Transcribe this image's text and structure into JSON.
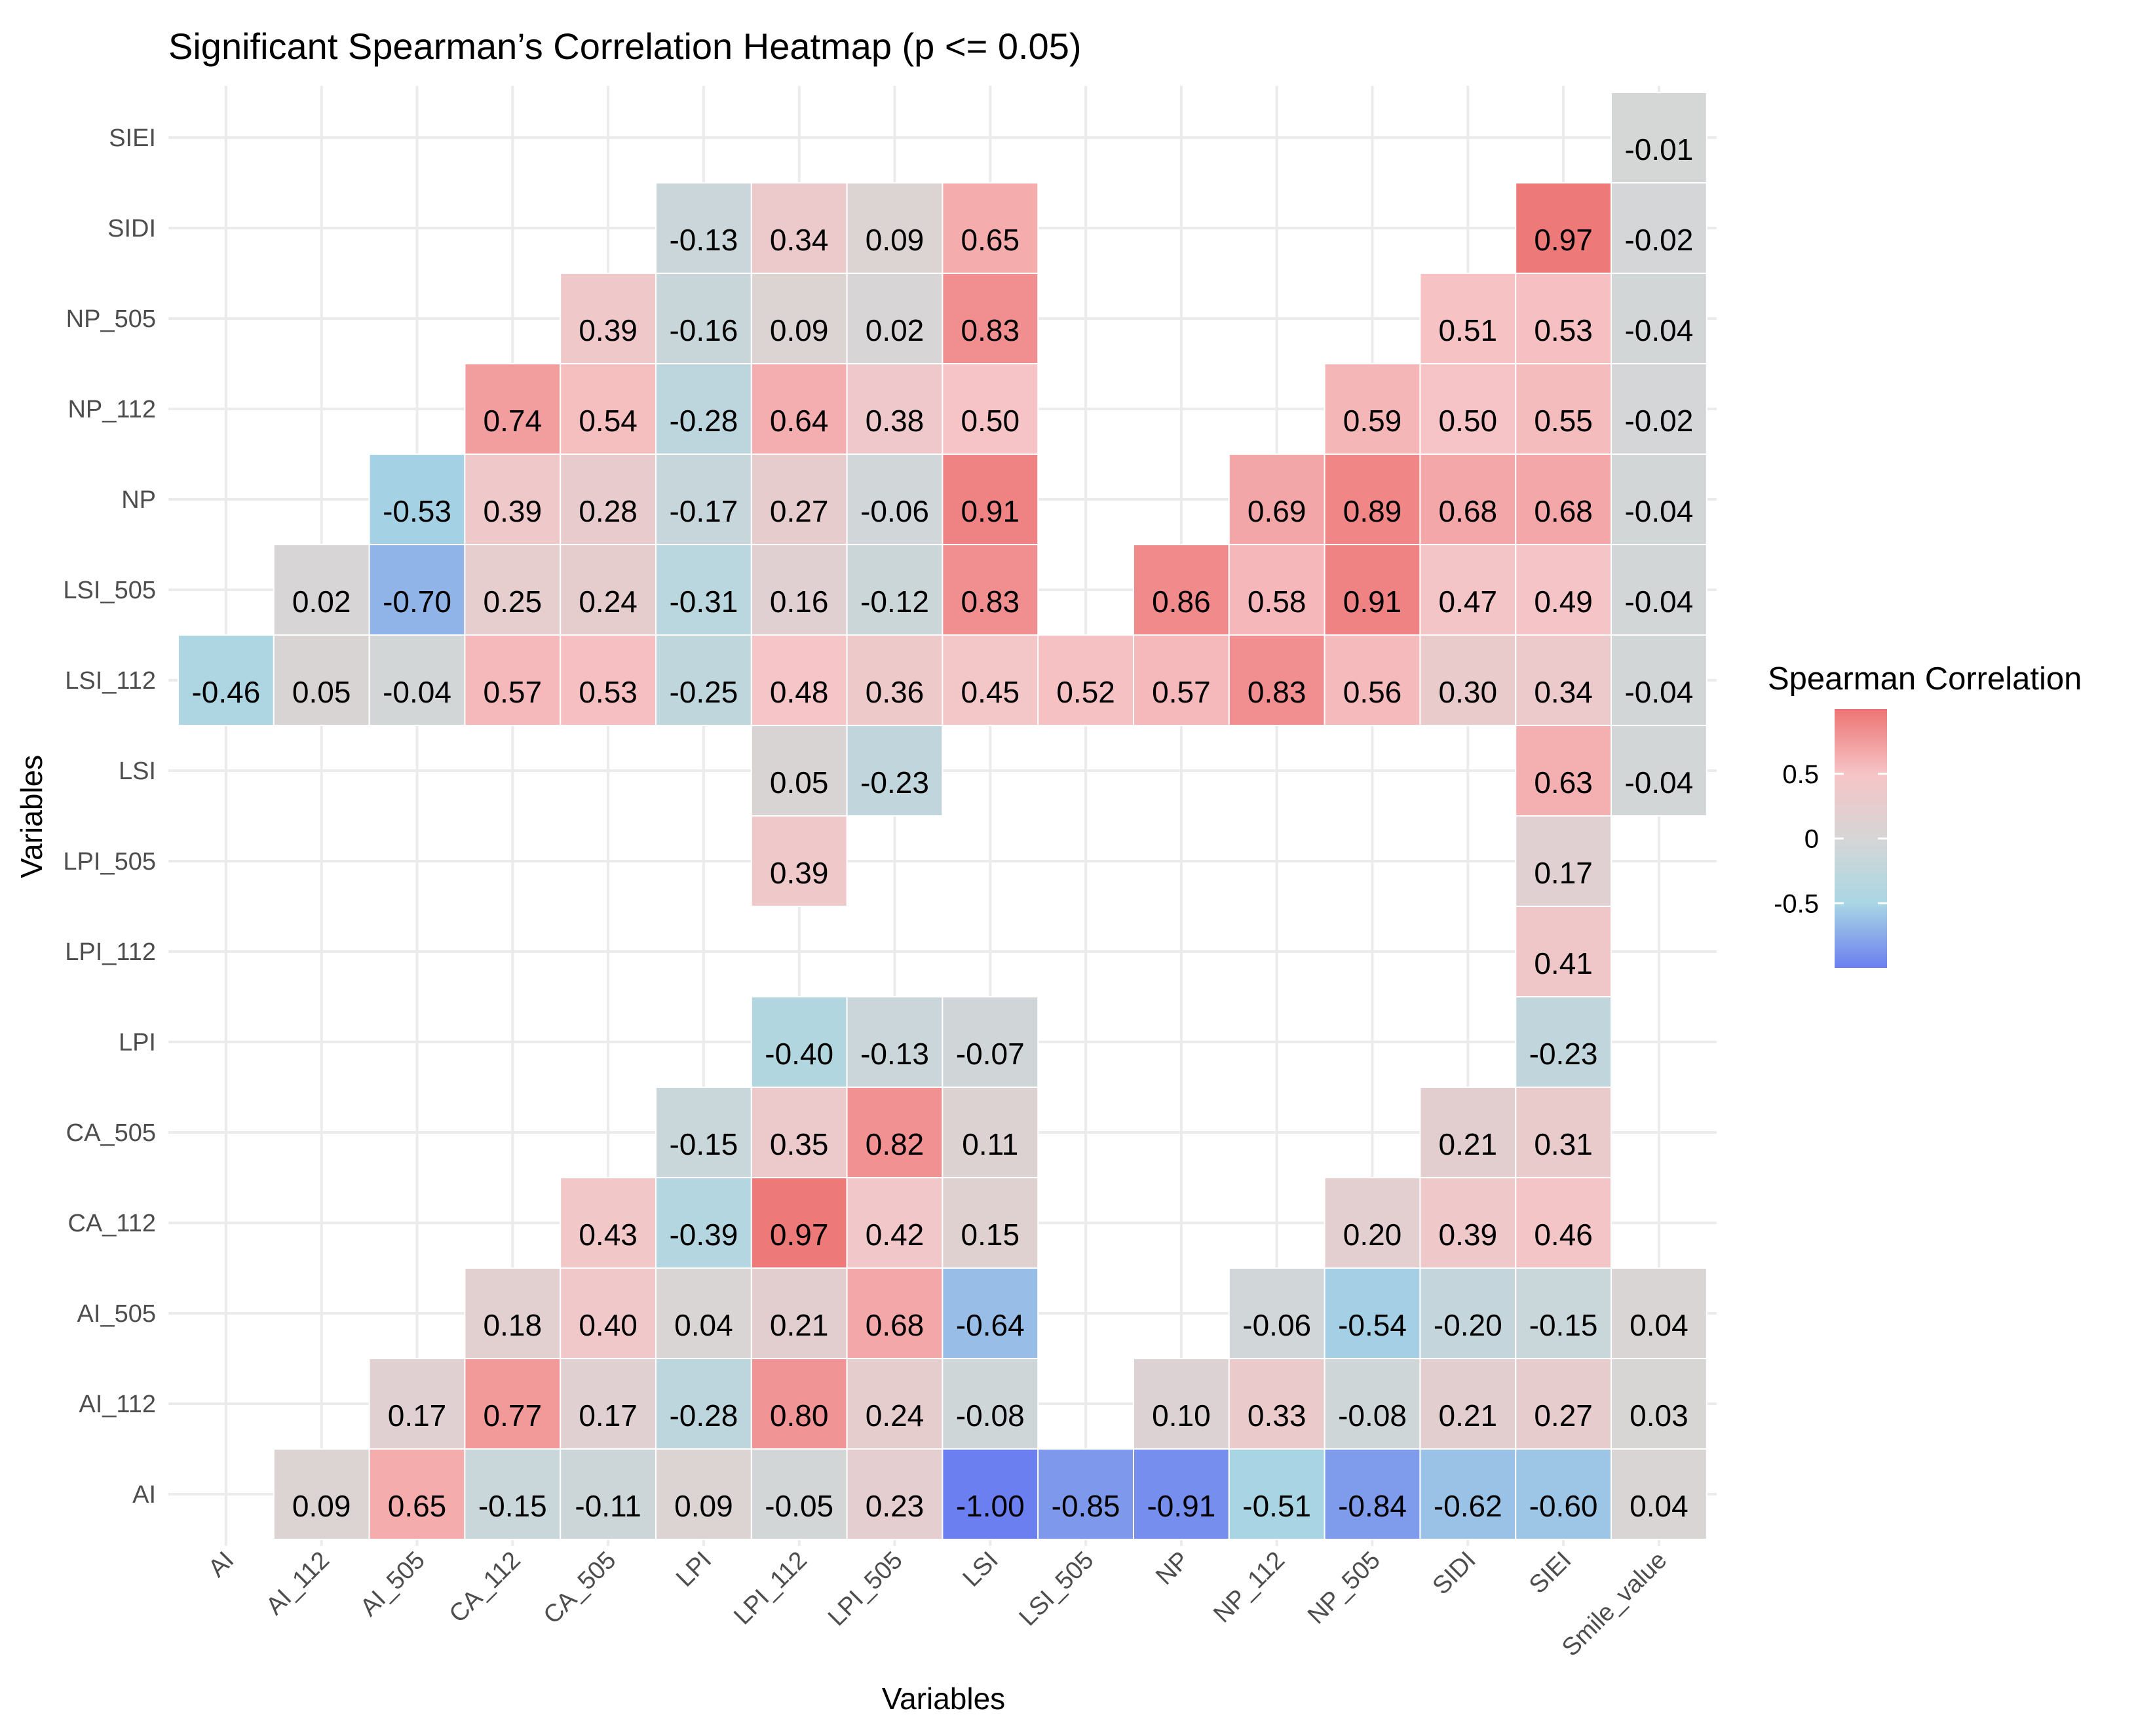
{
  "chart_data": {
    "type": "heatmap",
    "title": "Significant Spearman’s Correlation Heatmap (p <= 0.05)",
    "xlabel": "Variables",
    "ylabel": "Variables",
    "x_categories": [
      "AI",
      "AI_112",
      "AI_505",
      "CA_112",
      "CA_505",
      "LPI",
      "LPI_112",
      "LPI_505",
      "LSI",
      "LSI_505",
      "NP",
      "NP_112",
      "NP_505",
      "SIDI",
      "SIEI",
      "Smile_value"
    ],
    "y_categories": [
      "SIEI",
      "SIDI",
      "NP_505",
      "NP_112",
      "NP",
      "LSI_505",
      "LSI_112",
      "LSI",
      "LPI_505",
      "LPI_112",
      "LPI",
      "CA_505",
      "CA_112",
      "AI_505",
      "AI_112",
      "AI"
    ],
    "values": [
      [
        null,
        null,
        null,
        null,
        null,
        null,
        null,
        null,
        null,
        null,
        null,
        null,
        null,
        null,
        null,
        -0.01
      ],
      [
        null,
        null,
        null,
        null,
        null,
        -0.13,
        0.34,
        0.09,
        0.65,
        null,
        null,
        null,
        null,
        null,
        0.97,
        -0.02
      ],
      [
        null,
        null,
        null,
        null,
        0.39,
        -0.16,
        0.09,
        0.02,
        0.83,
        null,
        null,
        null,
        null,
        0.51,
        0.53,
        -0.04
      ],
      [
        null,
        null,
        null,
        0.74,
        0.54,
        -0.28,
        0.64,
        0.38,
        0.5,
        null,
        null,
        null,
        0.59,
        0.5,
        0.55,
        -0.02
      ],
      [
        null,
        null,
        -0.53,
        0.39,
        0.28,
        -0.17,
        0.27,
        -0.06,
        0.91,
        null,
        null,
        0.69,
        0.89,
        0.68,
        0.68,
        -0.04
      ],
      [
        null,
        0.02,
        -0.7,
        0.25,
        0.24,
        -0.31,
        0.16,
        -0.12,
        0.83,
        null,
        0.86,
        0.58,
        0.91,
        0.47,
        0.49,
        -0.04
      ],
      [
        -0.46,
        0.05,
        -0.04,
        0.57,
        0.53,
        -0.25,
        0.48,
        0.36,
        0.45,
        0.52,
        0.57,
        0.83,
        0.56,
        0.3,
        0.34,
        -0.04
      ],
      [
        null,
        null,
        null,
        null,
        null,
        null,
        0.05,
        -0.23,
        null,
        null,
        null,
        null,
        null,
        null,
        0.63,
        -0.04
      ],
      [
        null,
        null,
        null,
        null,
        null,
        null,
        0.39,
        null,
        null,
        null,
        null,
        null,
        null,
        null,
        0.17,
        null
      ],
      [
        null,
        null,
        null,
        null,
        null,
        null,
        null,
        null,
        null,
        null,
        null,
        null,
        null,
        null,
        0.41,
        null
      ],
      [
        null,
        null,
        null,
        null,
        null,
        null,
        -0.4,
        -0.13,
        -0.07,
        null,
        null,
        null,
        null,
        null,
        -0.23,
        null
      ],
      [
        null,
        null,
        null,
        null,
        null,
        -0.15,
        0.35,
        0.82,
        0.11,
        null,
        null,
        null,
        null,
        0.21,
        0.31,
        null
      ],
      [
        null,
        null,
        null,
        null,
        0.43,
        -0.39,
        0.97,
        0.42,
        0.15,
        null,
        null,
        null,
        0.2,
        0.39,
        0.46,
        null
      ],
      [
        null,
        null,
        null,
        0.18,
        0.4,
        0.04,
        0.21,
        0.68,
        -0.64,
        null,
        null,
        -0.06,
        -0.54,
        -0.2,
        -0.15,
        0.04
      ],
      [
        null,
        null,
        0.17,
        0.77,
        0.17,
        -0.28,
        0.8,
        0.24,
        -0.08,
        null,
        0.1,
        0.33,
        -0.08,
        0.21,
        0.27,
        0.03
      ],
      [
        null,
        0.09,
        0.65,
        -0.15,
        -0.11,
        0.09,
        -0.05,
        0.23,
        -1.0,
        -0.85,
        -0.91,
        -0.51,
        -0.84,
        -0.62,
        -0.6,
        0.04
      ]
    ],
    "value_range": [
      -1,
      1
    ],
    "legend": {
      "title": "Spearman Correlation",
      "ticks": [
        0.5,
        0,
        -0.5
      ],
      "tick_labels": [
        "0.5",
        "0",
        "-0.5"
      ],
      "position": "right"
    },
    "colors": {
      "low": "#6b7ff0",
      "low_mid": "#a9d6e3",
      "mid": "#d6d6d6",
      "high_mid": "#f6c4c6",
      "high": "#ee7474",
      "grid": "#ebebeb",
      "text": "#000000",
      "axis_text": "#4d4d4d"
    },
    "grid": true
  }
}
